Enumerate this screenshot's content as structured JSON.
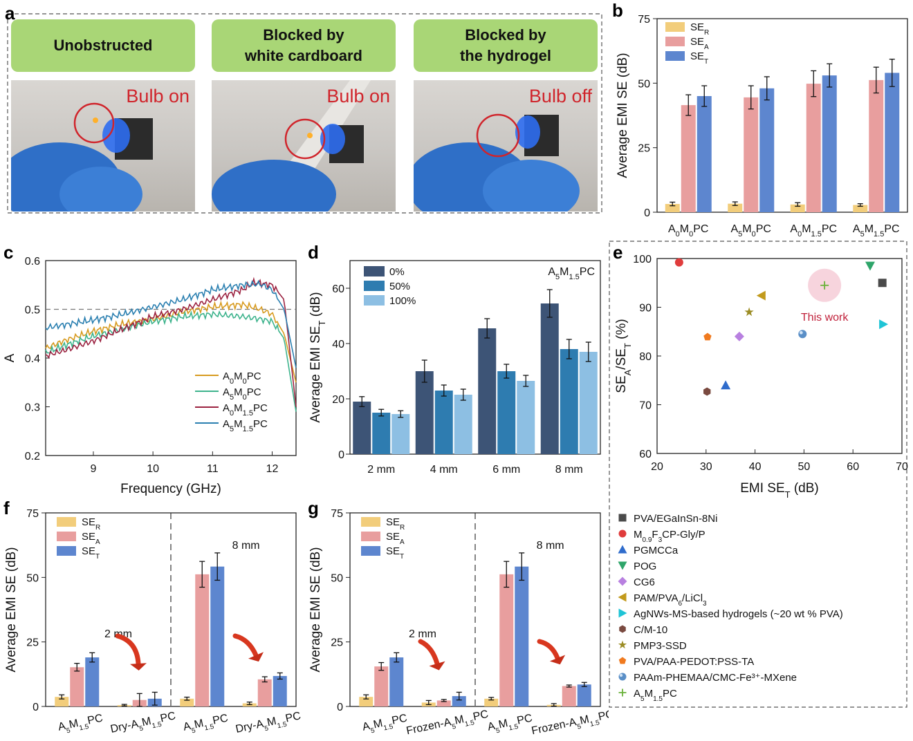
{
  "panel_labels": {
    "a": "a",
    "b": "b",
    "c": "c",
    "d": "d",
    "e": "e",
    "f": "f",
    "g": "g"
  },
  "photos": [
    {
      "heading_line1": "Unobstructed",
      "heading_line2": "",
      "status": "Bulb on"
    },
    {
      "heading_line1": "Blocked by",
      "heading_line2": "white cardboard",
      "status": "Bulb on"
    },
    {
      "heading_line1": "Blocked by",
      "heading_line2": "the hydrogel",
      "status": "Bulb off"
    }
  ],
  "colors": {
    "se_r": "#f2cd7b",
    "se_a": "#e89e9e",
    "se_t": "#5d86cf",
    "thick0": "#3d5476",
    "thick50": "#2e7cb0",
    "thick100": "#8dbfe3",
    "c_a0m0": "#d79a1e",
    "c_a5m0": "#3db38c",
    "c_a0m15": "#9b2240",
    "c_a5m15": "#2a7fb0"
  },
  "chart_data": [
    {
      "id": "b",
      "type": "bar",
      "ylabel": "Average EMI SE (dB)",
      "ylim": [
        0,
        75
      ],
      "yticks": [
        "0",
        "25",
        "50",
        "75"
      ],
      "categories": [
        {
          "base": "A",
          "s1": "0",
          "mid": "M",
          "s2": "0",
          "tail": "PC"
        },
        {
          "base": "A",
          "s1": "5",
          "mid": "M",
          "s2": "0",
          "tail": "PC"
        },
        {
          "base": "A",
          "s1": "0",
          "mid": "M",
          "s2": "1.5",
          "tail": "PC"
        },
        {
          "base": "A",
          "s1": "5",
          "mid": "M",
          "s2": "1.5",
          "tail": "PC"
        }
      ],
      "legend": [
        {
          "main": "SE",
          "sub": "R"
        },
        {
          "main": "SE",
          "sub": "A"
        },
        {
          "main": "SE",
          "sub": "T"
        }
      ],
      "series": [
        {
          "name": "SE_R",
          "values": [
            3.2,
            3.3,
            3.0,
            2.8
          ],
          "errors": [
            0.7,
            0.7,
            0.7,
            0.5
          ]
        },
        {
          "name": "SE_A",
          "values": [
            41.5,
            44.5,
            49.8,
            51.2
          ],
          "errors": [
            4,
            4.5,
            5,
            5
          ]
        },
        {
          "name": "SE_T",
          "values": [
            45,
            48,
            53,
            54
          ],
          "errors": [
            4,
            4.5,
            4.5,
            5.3
          ]
        }
      ]
    },
    {
      "id": "c",
      "type": "line",
      "xlabel": "Frequency (GHz)",
      "ylabel": "A",
      "xlim": [
        8.2,
        12.4
      ],
      "ylim": [
        0.2,
        0.6
      ],
      "xticks": [
        "9",
        "10",
        "11",
        "12"
      ],
      "yticks": [
        "0.2",
        "0.3",
        "0.4",
        "0.5",
        "0.6"
      ],
      "reference_line": 0.5,
      "series": [
        {
          "name": {
            "base": "A",
            "s1": "0",
            "mid": "M",
            "s2": "0",
            "tail": "PC"
          },
          "x": [
            8.2,
            8.5,
            9,
            9.5,
            10,
            10.5,
            11,
            11.5,
            11.8,
            12,
            12.2,
            12.4
          ],
          "y": [
            0.42,
            0.435,
            0.455,
            0.47,
            0.48,
            0.495,
            0.505,
            0.51,
            0.5,
            0.49,
            0.45,
            0.35
          ]
        },
        {
          "name": {
            "base": "A",
            "s1": "5",
            "mid": "M",
            "s2": "0",
            "tail": "PC"
          },
          "x": [
            8.2,
            8.5,
            9,
            9.5,
            10,
            10.5,
            11,
            11.5,
            11.8,
            12,
            12.2,
            12.4
          ],
          "y": [
            0.41,
            0.425,
            0.445,
            0.46,
            0.475,
            0.485,
            0.49,
            0.485,
            0.48,
            0.475,
            0.44,
            0.29
          ]
        },
        {
          "name": {
            "base": "A",
            "s1": "0",
            "mid": "M",
            "s2": "1.5",
            "tail": "PC"
          },
          "x": [
            8.2,
            8.5,
            9,
            9.5,
            10,
            10.5,
            11,
            11.5,
            11.7,
            12,
            12.2,
            12.4
          ],
          "y": [
            0.405,
            0.415,
            0.435,
            0.46,
            0.485,
            0.5,
            0.52,
            0.54,
            0.555,
            0.55,
            0.52,
            0.3
          ]
        },
        {
          "name": {
            "base": "A",
            "s1": "5",
            "mid": "M",
            "s2": "1.5",
            "tail": "PC"
          },
          "x": [
            8.2,
            8.5,
            9,
            9.5,
            10,
            10.5,
            11,
            11.5,
            11.8,
            12,
            12.2,
            12.4
          ],
          "y": [
            0.462,
            0.468,
            0.478,
            0.49,
            0.505,
            0.52,
            0.54,
            0.55,
            0.552,
            0.54,
            0.5,
            0.38
          ]
        }
      ]
    },
    {
      "id": "d",
      "type": "bar",
      "ylabel": "Average EMI SE",
      "ylabel_sub": "T",
      "ylabel_tail": " (dB)",
      "ylim": [
        0,
        70
      ],
      "yticks": [
        "0",
        "20",
        "40",
        "60"
      ],
      "annotation": {
        "base": "A",
        "s1": "5",
        "mid": "M",
        "s2": "1.5",
        "tail": "PC"
      },
      "categories": [
        "2 mm",
        "4 mm",
        "6 mm",
        "8 mm"
      ],
      "series": [
        {
          "name": "0%",
          "values": [
            19,
            30,
            45.5,
            54.5
          ],
          "errors": [
            1.8,
            4,
            3.5,
            5
          ]
        },
        {
          "name": "50%",
          "values": [
            15,
            23,
            30,
            38
          ],
          "errors": [
            1.2,
            2,
            2.5,
            3.5
          ]
        },
        {
          "name": "100%",
          "values": [
            14.5,
            21.5,
            26.5,
            37
          ],
          "errors": [
            1.2,
            2,
            2,
            3.5
          ]
        }
      ]
    },
    {
      "id": "e",
      "type": "scatter",
      "xlabel": "EMI SE",
      "xlabel_sub": "T",
      "xlabel_tail": " (dB)",
      "ylabel_main": "SE",
      "ylabel_sub1": "A",
      "ylabel_mid": "/SE",
      "ylabel_sub2": "T",
      "ylabel_tail": " (%)",
      "xlim": [
        20,
        70
      ],
      "ylim": [
        60,
        100
      ],
      "xticks": [
        "20",
        "30",
        "40",
        "50",
        "60",
        "70"
      ],
      "yticks": [
        "60",
        "70",
        "80",
        "90",
        "100"
      ],
      "annotation": "This work",
      "points": [
        {
          "label": "PVA/EGaInSn-8Ni",
          "x": 66,
          "y": 95,
          "shape": "square",
          "color": "#4a4a4a"
        },
        {
          "label": "M0.9F3CP-Gly/P",
          "parts": {
            "base": "M",
            "s1": "0.9",
            "mid": "F",
            "s2": "3",
            "tail": "CP-Gly/P"
          },
          "x": 24.5,
          "y": 99.2,
          "shape": "circle",
          "color": "#e03c3c"
        },
        {
          "label": "PGMCCa",
          "x": 34,
          "y": 74,
          "shape": "triangle-up",
          "color": "#2f6ccc"
        },
        {
          "label": "POG",
          "x": 63.5,
          "y": 98.5,
          "shape": "triangle-down",
          "color": "#2ea56a"
        },
        {
          "label": "CG6",
          "x": 36.8,
          "y": 84,
          "shape": "diamond",
          "color": "#b880e0"
        },
        {
          "label": "PAM/PVA6/LiCl3",
          "parts": {
            "base": "PAM/PVA",
            "s1": "6",
            "mid": "/LiCl",
            "s2": "3",
            "tail": ""
          },
          "x": 41.3,
          "y": 92.4,
          "shape": "triangle-left",
          "color": "#c29a1c"
        },
        {
          "label": "AgNWs-MS-based hydrogels (~20 wt % PVA)",
          "x": 66.2,
          "y": 86.5,
          "shape": "triangle-right",
          "color": "#1fc4d6"
        },
        {
          "label": "C/M-10",
          "x": 30.2,
          "y": 72.7,
          "shape": "hexagon",
          "color": "#7a4a40"
        },
        {
          "label": "PMP3-SSD",
          "x": 38.8,
          "y": 89,
          "shape": "star",
          "color": "#9b8c24"
        },
        {
          "label": "PVA/PAA-PEDOT:PSS-TA",
          "x": 30.3,
          "y": 83.9,
          "shape": "pentagon",
          "color": "#f07a1f"
        },
        {
          "label": "PAAm-PHEMAA/CMC-Fe³⁺-MXene",
          "x": 49.7,
          "y": 84.5,
          "shape": "sphere",
          "color": "#5a8fc7"
        },
        {
          "label": "A5M1.5PC",
          "parts": {
            "base": "A",
            "s1": "5",
            "mid": "M",
            "s2": "1.5",
            "tail": "PC"
          },
          "x": 54.2,
          "y": 94.5,
          "shape": "plus",
          "color": "#6ab23a"
        }
      ]
    },
    {
      "id": "f",
      "type": "bar",
      "ylabel": "Average EMI SE (dB)",
      "ylim": [
        0,
        75
      ],
      "yticks": [
        "0",
        "25",
        "50",
        "75"
      ],
      "categories": [
        {
          "pre": "",
          "base": "A",
          "s1": "5",
          "mid": "M",
          "s2": "1.5",
          "tail": "PC"
        },
        {
          "pre": "Dry-",
          "base": "A",
          "s1": "5",
          "mid": "M",
          "s2": "1.5",
          "tail": "PC"
        },
        {
          "pre": "",
          "base": "A",
          "s1": "5",
          "mid": "M",
          "s2": "1.5",
          "tail": "PC"
        },
        {
          "pre": "Dry-",
          "base": "A",
          "s1": "5",
          "mid": "M",
          "s2": "1.5",
          "tail": "PC"
        }
      ],
      "groups": [
        "2 mm",
        "8 mm"
      ],
      "legend": [
        {
          "main": "SE",
          "sub": "R"
        },
        {
          "main": "SE",
          "sub": "A"
        },
        {
          "main": "SE",
          "sub": "T"
        }
      ],
      "series": [
        {
          "name": "SE_R",
          "values": [
            3.7,
            0.5,
            3.0,
            1.2
          ],
          "errors": [
            0.8,
            0.3,
            0.6,
            0.5
          ]
        },
        {
          "name": "SE_A",
          "values": [
            15.2,
            2.5,
            51.2,
            10.5
          ],
          "errors": [
            1.5,
            2.5,
            5,
            1
          ]
        },
        {
          "name": "SE_T",
          "values": [
            19,
            3,
            54.2,
            11.8
          ],
          "errors": [
            1.8,
            2.5,
            5.3,
            1.2
          ]
        }
      ]
    },
    {
      "id": "g",
      "type": "bar",
      "ylabel": "Average EMI SE (dB)",
      "ylim": [
        0,
        75
      ],
      "yticks": [
        "0",
        "25",
        "50",
        "75"
      ],
      "categories": [
        {
          "pre": "",
          "base": "A",
          "s1": "5",
          "mid": "M",
          "s2": "1.5",
          "tail": "PC"
        },
        {
          "pre": "Frozen-",
          "base": "A",
          "s1": "5",
          "mid": "M",
          "s2": "1.5",
          "tail": "PC"
        },
        {
          "pre": "",
          "base": "A",
          "s1": "5",
          "mid": "M",
          "s2": "1.5",
          "tail": "PC"
        },
        {
          "pre": "Frozen-",
          "base": "A",
          "s1": "5",
          "mid": "M",
          "s2": "1.5",
          "tail": "PC"
        }
      ],
      "groups": [
        "2 mm",
        "8 mm"
      ],
      "legend": [
        {
          "main": "SE",
          "sub": "R"
        },
        {
          "main": "SE",
          "sub": "A"
        },
        {
          "main": "SE",
          "sub": "T"
        }
      ],
      "series": [
        {
          "name": "SE_R",
          "values": [
            3.7,
            1.5,
            3.0,
            0.6
          ],
          "errors": [
            0.8,
            0.8,
            0.5,
            0.5
          ]
        },
        {
          "name": "SE_A",
          "values": [
            15.5,
            2.3,
            51.2,
            7.9
          ],
          "errors": [
            1.5,
            0.4,
            5,
            0.4
          ]
        },
        {
          "name": "SE_T",
          "values": [
            19,
            4,
            54.2,
            8.5
          ],
          "errors": [
            1.8,
            1.5,
            5.3,
            0.8
          ]
        }
      ]
    }
  ]
}
